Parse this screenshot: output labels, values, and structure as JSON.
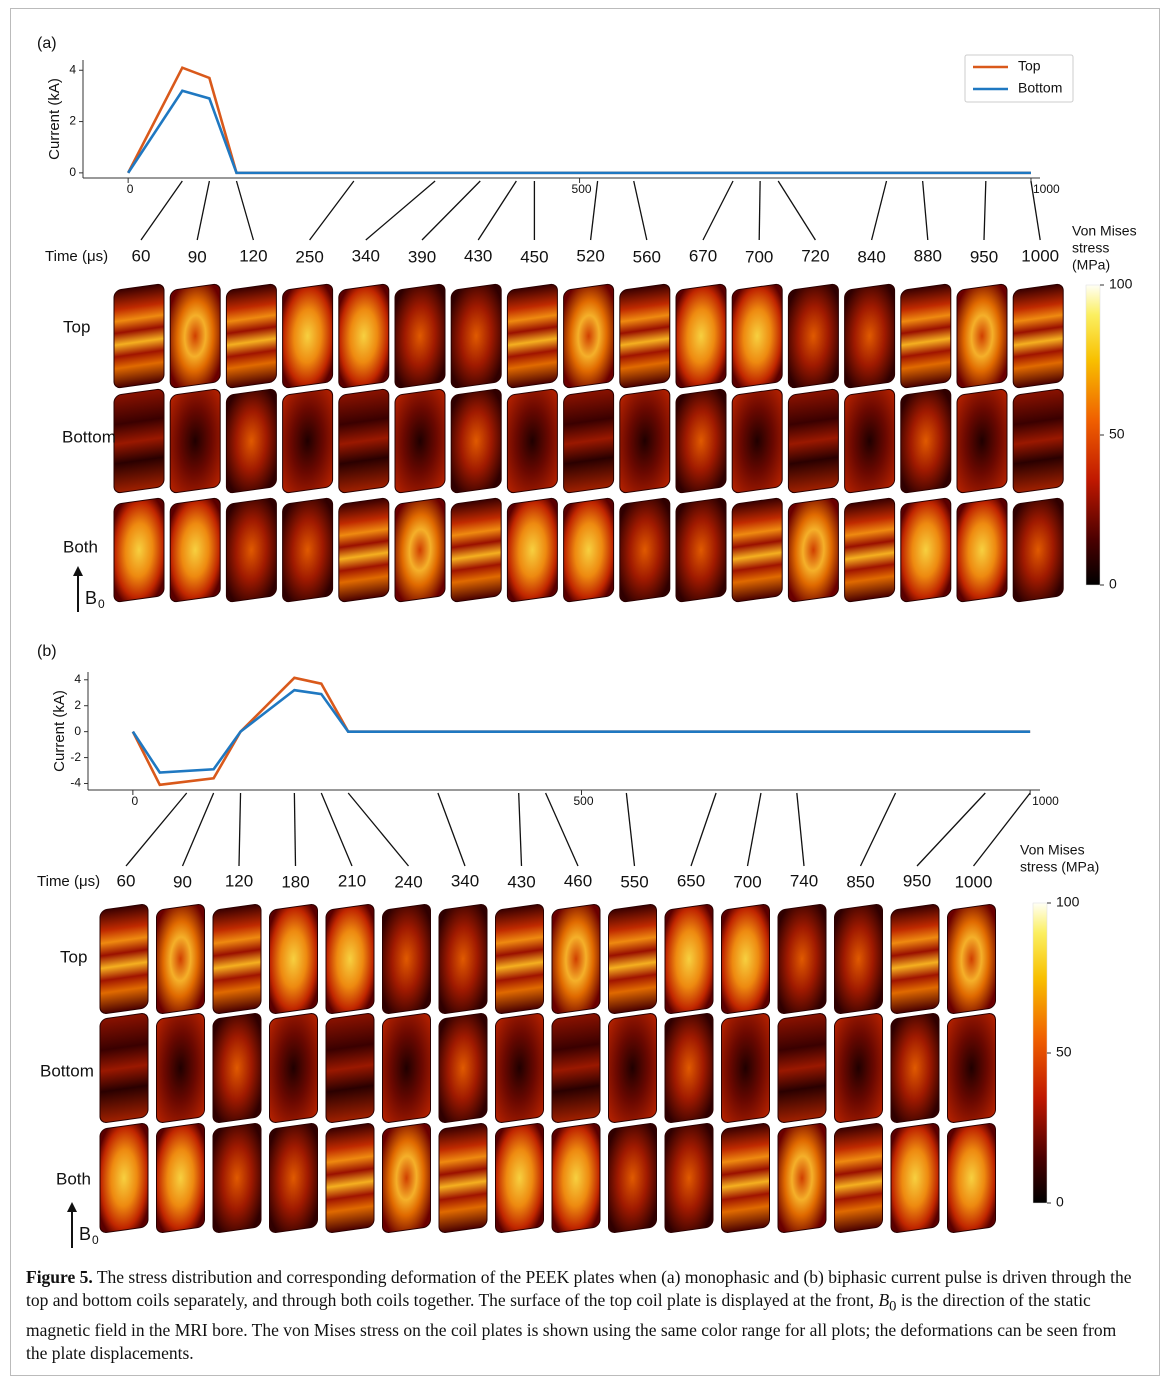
{
  "chart_data": [
    {
      "type": "line",
      "panel": "(a)",
      "y_label": "Current (kA)",
      "x": [
        0,
        60,
        90,
        120,
        1000
      ],
      "series": [
        {
          "name": "Top",
          "color": "#d9591b",
          "values": [
            0,
            4.1,
            3.7,
            0,
            0
          ]
        },
        {
          "name": "Bottom",
          "color": "#1f78c1",
          "values": [
            0,
            3.2,
            2.9,
            0,
            0
          ]
        }
      ],
      "xlim": [
        -50,
        1010
      ],
      "ylim": [
        -0.2,
        4.4
      ],
      "xticks": [
        0,
        500,
        1000
      ],
      "yticks": [
        0,
        2,
        4
      ],
      "legend": "upper right",
      "time_label": "Time (μs)",
      "times": [
        60,
        90,
        120,
        250,
        340,
        390,
        430,
        450,
        520,
        560,
        670,
        700,
        720,
        840,
        880,
        950,
        1000
      ],
      "rows": [
        "Top",
        "Bottom",
        "Both"
      ],
      "field": {
        "symbol": "B",
        "sub": "0"
      },
      "colorbar": {
        "title": [
          "Von Mises",
          "stress",
          "(MPa)"
        ],
        "clim": [
          0,
          100
        ],
        "ticks": [
          0,
          50,
          100
        ]
      }
    },
    {
      "type": "line",
      "panel": "(b)",
      "y_label": "Current (kA)",
      "x": [
        0,
        30,
        90,
        120,
        180,
        210,
        240,
        1000
      ],
      "series": [
        {
          "name": "Top",
          "color": "#d9591b",
          "values": [
            0,
            -4.1,
            -3.6,
            0,
            4.15,
            3.7,
            0,
            0
          ]
        },
        {
          "name": "Bottom",
          "color": "#1f78c1",
          "values": [
            0,
            -3.15,
            -2.9,
            0,
            3.2,
            2.9,
            0,
            0
          ]
        }
      ],
      "xlim": [
        -50,
        1011
      ],
      "ylim": [
        -4.5,
        4.6
      ],
      "xticks": [
        0,
        500,
        1000
      ],
      "yticks": [
        -4,
        -2,
        0,
        2,
        4
      ],
      "legend": "none",
      "time_label": "Time (μs)",
      "times": [
        60,
        90,
        120,
        180,
        210,
        240,
        340,
        430,
        460,
        550,
        650,
        700,
        740,
        850,
        950,
        1000
      ],
      "rows": [
        "Top",
        "Bottom",
        "Both"
      ],
      "field": {
        "symbol": "B",
        "sub": "0"
      },
      "colorbar": {
        "title": [
          "Von Mises",
          "stress (MPa)"
        ],
        "clim": [
          0,
          100
        ],
        "ticks": [
          0,
          50,
          100
        ]
      }
    }
  ],
  "caption": {
    "label": "Figure 5.",
    "text1": "The stress distribution and corresponding deformation of the PEEK plates when (a) monophasic and (b) biphasic current pulse is driven through the top and bottom coils separately, and through both coils together. The surface of the top coil plate is displayed at the front, ",
    "symbol": "B",
    "sub": "0",
    "text2": " is the direction of the static magnetic field in the MRI bore. The von Mises stress on the coil plates is shown using the same color range for all plots; the deformations can be seen from the plate displacements."
  }
}
